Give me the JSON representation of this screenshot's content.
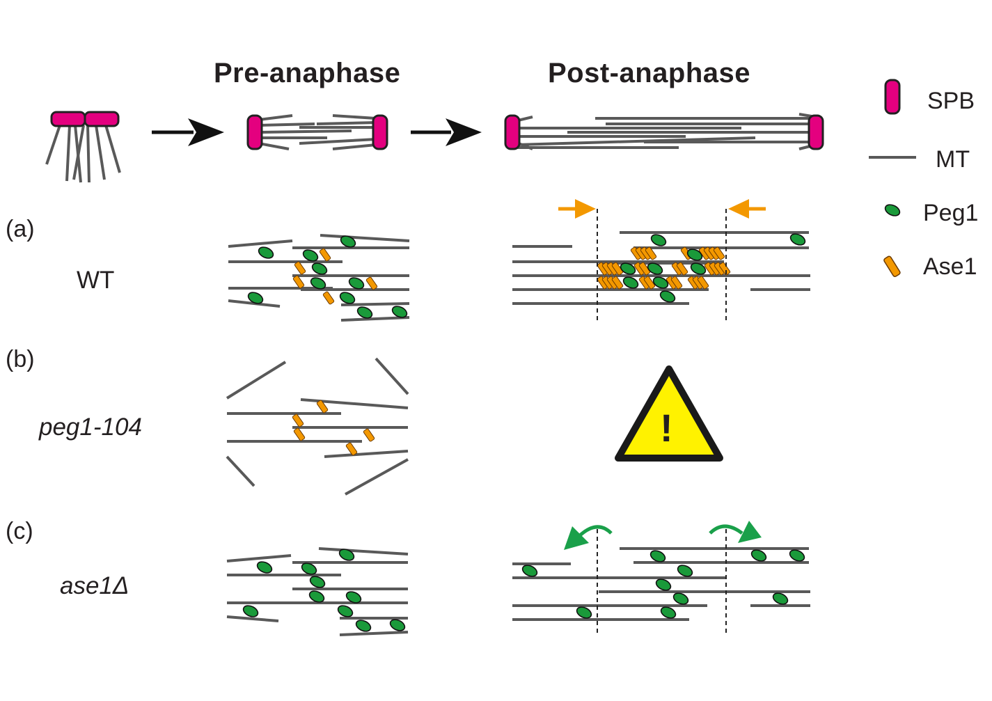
{
  "headers": {
    "pre": "Pre-anaphase",
    "post": "Post-anaphase"
  },
  "legend": [
    {
      "label": "SPB",
      "icon": "spb-icon"
    },
    {
      "label": "MT",
      "icon": "mt-icon"
    },
    {
      "label": "Peg1",
      "icon": "peg1-icon"
    },
    {
      "label": "Ase1",
      "icon": "ase1-icon"
    }
  ],
  "rows": [
    {
      "tag": "(a)",
      "genotype": "WT"
    },
    {
      "tag": "(b)",
      "genotype": "peg1-104"
    },
    {
      "tag": "(c)",
      "genotype": "ase1Δ"
    }
  ],
  "warning": {
    "symbol": "!",
    "icon": "warning-icon"
  },
  "colors": {
    "spb": "#e4007f",
    "mt": "#595959",
    "peg1": "#1a9a3a",
    "ase1": "#f39800",
    "arrow_orange": "#f39800",
    "arrow_green": "#1aa04a",
    "warning": "#fff200"
  }
}
